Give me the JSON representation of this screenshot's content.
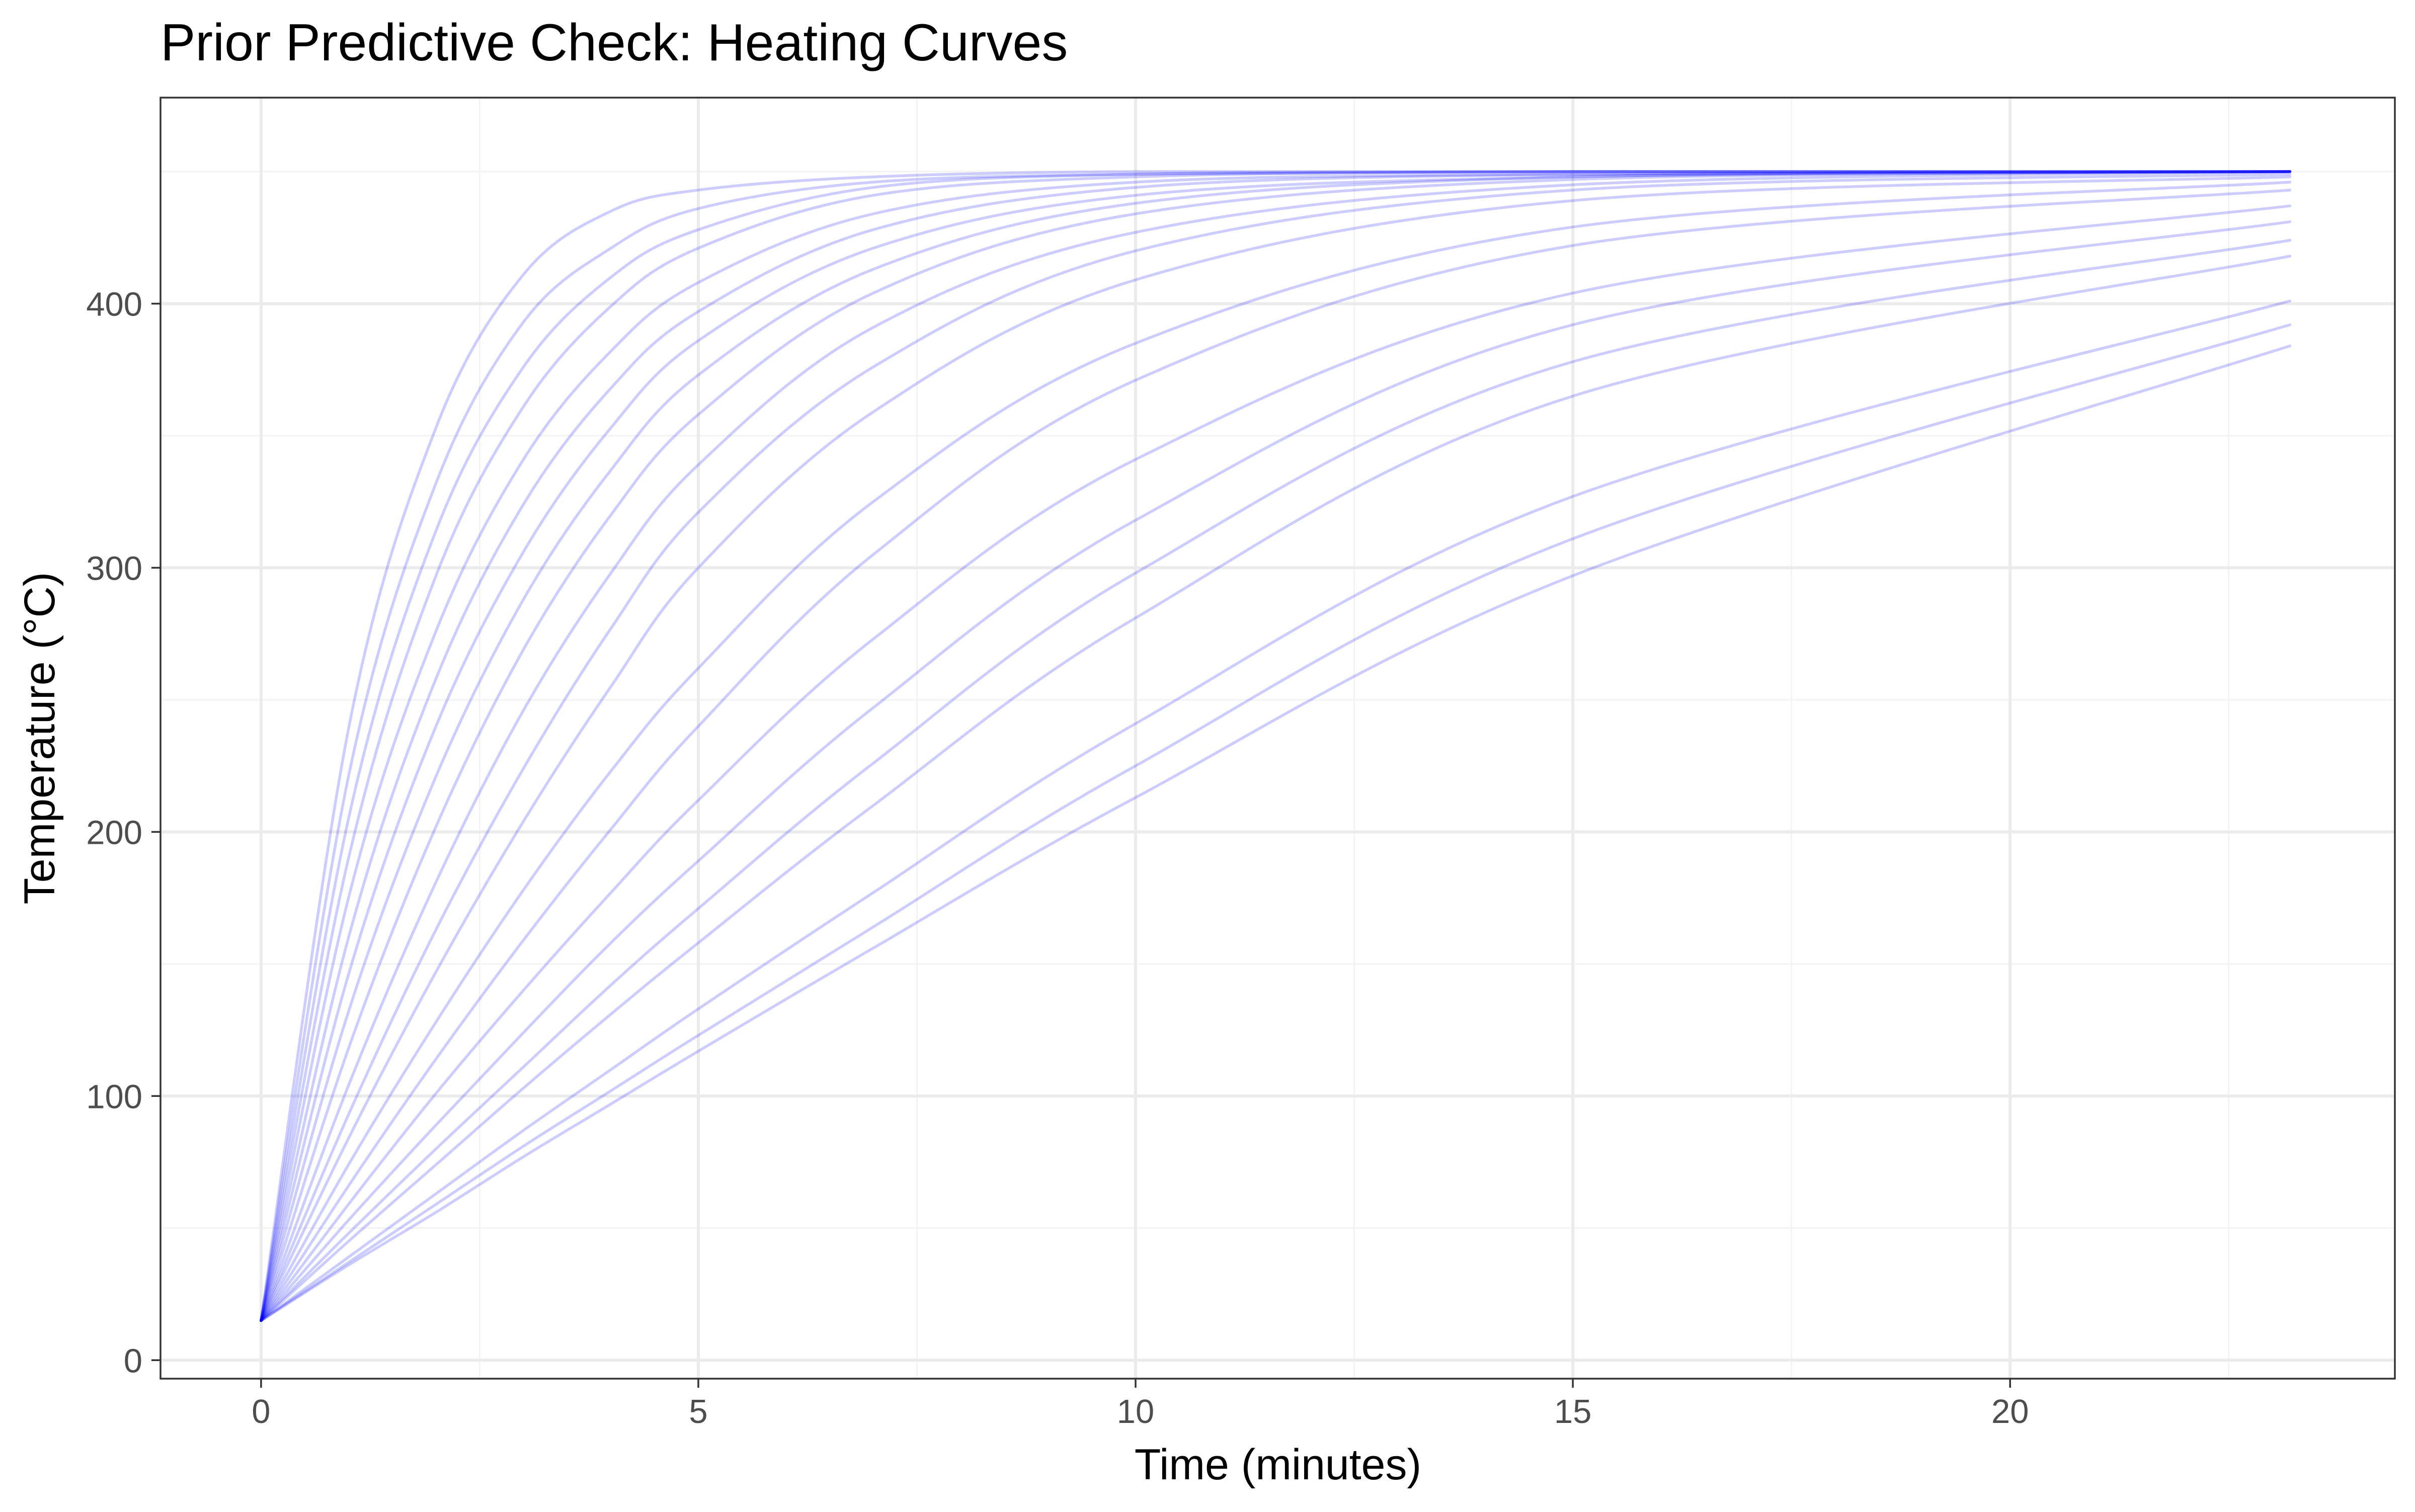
{
  "chart_data": {
    "type": "line",
    "title": "Prior Predictive Check: Heating Curves",
    "xlabel": "Time (minutes)",
    "ylabel": "Temperature (°C)",
    "xlim": [
      -1.15,
      24.4
    ],
    "ylim": [
      -7,
      478
    ],
    "x_ticks": [
      0,
      5,
      10,
      15,
      20
    ],
    "x_tick_labels": [
      "0",
      "5",
      "10",
      "15",
      "20"
    ],
    "y_ticks": [
      0,
      100,
      200,
      300,
      400
    ],
    "y_tick_labels": [
      "0",
      "100",
      "200",
      "300",
      "400"
    ],
    "grid": true,
    "legend": "none",
    "colors": {
      "line": "#0000ff",
      "grid_major": "#ebebeb",
      "grid_minor": "#f3f3f3",
      "panel_border": "#333333",
      "tick": "#333333"
    },
    "line_alpha": 0.2,
    "x_start": 0,
    "x_end": 23.2,
    "series": [
      {
        "values": [
          {
            "x": 0,
            "y": 15
          },
          {
            "x": 1,
            "y": 239
          },
          {
            "x": 2,
            "y": 353
          },
          {
            "x": 3,
            "y": 411
          },
          {
            "x": 4,
            "y": 435
          },
          {
            "x": 5,
            "y": 443
          },
          {
            "x": 7,
            "y": 448
          },
          {
            "x": 10,
            "y": 450
          },
          {
            "x": 15,
            "y": 450
          },
          {
            "x": 23.2,
            "y": 450
          }
        ]
      },
      {
        "values": [
          {
            "x": 0,
            "y": 15
          },
          {
            "x": 1,
            "y": 221
          },
          {
            "x": 2,
            "y": 332
          },
          {
            "x": 3,
            "y": 393
          },
          {
            "x": 4,
            "y": 421
          },
          {
            "x": 5,
            "y": 436
          },
          {
            "x": 7,
            "y": 446
          },
          {
            "x": 10,
            "y": 449
          },
          {
            "x": 15,
            "y": 450
          },
          {
            "x": 23.2,
            "y": 450
          }
        ]
      },
      {
        "values": [
          {
            "x": 0,
            "y": 15
          },
          {
            "x": 1,
            "y": 205
          },
          {
            "x": 2,
            "y": 314
          },
          {
            "x": 3,
            "y": 376
          },
          {
            "x": 4,
            "y": 410
          },
          {
            "x": 5,
            "y": 428
          },
          {
            "x": 7,
            "y": 444
          },
          {
            "x": 10,
            "y": 449
          },
          {
            "x": 15,
            "y": 450
          },
          {
            "x": 23.2,
            "y": 450
          }
        ]
      },
      {
        "values": [
          {
            "x": 0,
            "y": 15
          },
          {
            "x": 1,
            "y": 190
          },
          {
            "x": 2,
            "y": 297
          },
          {
            "x": 3,
            "y": 361
          },
          {
            "x": 4,
            "y": 399
          },
          {
            "x": 5,
            "y": 421
          },
          {
            "x": 7,
            "y": 441
          },
          {
            "x": 10,
            "y": 448
          },
          {
            "x": 15,
            "y": 450
          },
          {
            "x": 23.2,
            "y": 450
          }
        ]
      },
      {
        "values": [
          {
            "x": 0,
            "y": 15
          },
          {
            "x": 1,
            "y": 175
          },
          {
            "x": 2,
            "y": 276
          },
          {
            "x": 3,
            "y": 341
          },
          {
            "x": 4,
            "y": 382
          },
          {
            "x": 5,
            "y": 408
          },
          {
            "x": 7,
            "y": 434
          },
          {
            "x": 10,
            "y": 446
          },
          {
            "x": 15,
            "y": 449
          },
          {
            "x": 23.2,
            "y": 450
          }
        ]
      },
      {
        "values": [
          {
            "x": 0,
            "y": 15
          },
          {
            "x": 1,
            "y": 160
          },
          {
            "x": 2,
            "y": 258
          },
          {
            "x": 3,
            "y": 324
          },
          {
            "x": 4,
            "y": 368
          },
          {
            "x": 5,
            "y": 397
          },
          {
            "x": 7,
            "y": 428
          },
          {
            "x": 10,
            "y": 444
          },
          {
            "x": 15,
            "y": 449
          },
          {
            "x": 23.2,
            "y": 450
          }
        ]
      },
      {
        "values": [
          {
            "x": 0,
            "y": 15
          },
          {
            "x": 1,
            "y": 146
          },
          {
            "x": 2,
            "y": 240
          },
          {
            "x": 3,
            "y": 306
          },
          {
            "x": 4,
            "y": 353
          },
          {
            "x": 5,
            "y": 386
          },
          {
            "x": 7,
            "y": 421
          },
          {
            "x": 10,
            "y": 441
          },
          {
            "x": 15,
            "y": 448
          },
          {
            "x": 23.2,
            "y": 450
          }
        ]
      },
      {
        "values": [
          {
            "x": 0,
            "y": 15
          },
          {
            "x": 1,
            "y": 132
          },
          {
            "x": 2,
            "y": 221
          },
          {
            "x": 3,
            "y": 288
          },
          {
            "x": 4,
            "y": 337
          },
          {
            "x": 5,
            "y": 373
          },
          {
            "x": 7,
            "y": 413
          },
          {
            "x": 10,
            "y": 438
          },
          {
            "x": 15,
            "y": 448
          },
          {
            "x": 23.2,
            "y": 450
          }
        ]
      },
      {
        "values": [
          {
            "x": 0,
            "y": 15
          },
          {
            "x": 1,
            "y": 118
          },
          {
            "x": 2,
            "y": 202
          },
          {
            "x": 3,
            "y": 269
          },
          {
            "x": 4,
            "y": 320
          },
          {
            "x": 5,
            "y": 358
          },
          {
            "x": 7,
            "y": 404
          },
          {
            "x": 10,
            "y": 434
          },
          {
            "x": 15,
            "y": 447
          },
          {
            "x": 23.2,
            "y": 450
          }
        ]
      },
      {
        "values": [
          {
            "x": 0,
            "y": 15
          },
          {
            "x": 1,
            "y": 104
          },
          {
            "x": 2,
            "y": 181
          },
          {
            "x": 3,
            "y": 246
          },
          {
            "x": 4,
            "y": 298
          },
          {
            "x": 5,
            "y": 339
          },
          {
            "x": 7,
            "y": 391
          },
          {
            "x": 10,
            "y": 427
          },
          {
            "x": 15,
            "y": 445
          },
          {
            "x": 23.2,
            "y": 450
          }
        ]
      },
      {
        "values": [
          {
            "x": 0,
            "y": 15
          },
          {
            "x": 1,
            "y": 93
          },
          {
            "x": 2,
            "y": 163
          },
          {
            "x": 3,
            "y": 224
          },
          {
            "x": 4,
            "y": 277
          },
          {
            "x": 5,
            "y": 321
          },
          {
            "x": 7,
            "y": 376
          },
          {
            "x": 10,
            "y": 420
          },
          {
            "x": 15,
            "y": 443
          },
          {
            "x": 23.2,
            "y": 449
          }
        ]
      },
      {
        "values": [
          {
            "x": 0,
            "y": 15
          },
          {
            "x": 1,
            "y": 84
          },
          {
            "x": 2,
            "y": 147
          },
          {
            "x": 3,
            "y": 204
          },
          {
            "x": 4,
            "y": 255
          },
          {
            "x": 5,
            "y": 300
          },
          {
            "x": 7,
            "y": 359
          },
          {
            "x": 10,
            "y": 409
          },
          {
            "x": 15,
            "y": 439
          },
          {
            "x": 23.2,
            "y": 448
          }
        ]
      },
      {
        "values": [
          {
            "x": 0,
            "y": 15
          },
          {
            "x": 1,
            "y": 74
          },
          {
            "x": 2,
            "y": 128
          },
          {
            "x": 3,
            "y": 178
          },
          {
            "x": 4,
            "y": 223
          },
          {
            "x": 5,
            "y": 262
          },
          {
            "x": 7,
            "y": 325
          },
          {
            "x": 10,
            "y": 385
          },
          {
            "x": 15,
            "y": 429
          },
          {
            "x": 23.2,
            "y": 446
          }
        ]
      },
      {
        "values": [
          {
            "x": 0,
            "y": 15
          },
          {
            "x": 1,
            "y": 66
          },
          {
            "x": 2,
            "y": 114
          },
          {
            "x": 3,
            "y": 159
          },
          {
            "x": 4,
            "y": 201
          },
          {
            "x": 5,
            "y": 240
          },
          {
            "x": 7,
            "y": 305
          },
          {
            "x": 10,
            "y": 371
          },
          {
            "x": 15,
            "y": 422
          },
          {
            "x": 23.2,
            "y": 443
          }
        ]
      },
      {
        "values": [
          {
            "x": 0,
            "y": 15
          },
          {
            "x": 1,
            "y": 59
          },
          {
            "x": 2,
            "y": 101
          },
          {
            "x": 3,
            "y": 140
          },
          {
            "x": 4,
            "y": 177
          },
          {
            "x": 5,
            "y": 212
          },
          {
            "x": 7,
            "y": 273
          },
          {
            "x": 10,
            "y": 341
          },
          {
            "x": 15,
            "y": 404
          },
          {
            "x": 23.2,
            "y": 437
          }
        ]
      },
      {
        "values": [
          {
            "x": 0,
            "y": 15
          },
          {
            "x": 1,
            "y": 53
          },
          {
            "x": 2,
            "y": 89
          },
          {
            "x": 3,
            "y": 124
          },
          {
            "x": 4,
            "y": 158
          },
          {
            "x": 5,
            "y": 189
          },
          {
            "x": 7,
            "y": 247
          },
          {
            "x": 10,
            "y": 318
          },
          {
            "x": 15,
            "y": 392
          },
          {
            "x": 23.2,
            "y": 431
          }
        ]
      },
      {
        "values": [
          {
            "x": 0,
            "y": 15
          },
          {
            "x": 1,
            "y": 48
          },
          {
            "x": 2,
            "y": 80
          },
          {
            "x": 3,
            "y": 111
          },
          {
            "x": 4,
            "y": 142
          },
          {
            "x": 5,
            "y": 171
          },
          {
            "x": 7,
            "y": 226
          },
          {
            "x": 10,
            "y": 298
          },
          {
            "x": 15,
            "y": 378
          },
          {
            "x": 23.2,
            "y": 424
          }
        ]
      },
      {
        "values": [
          {
            "x": 0,
            "y": 15
          },
          {
            "x": 1,
            "y": 45
          },
          {
            "x": 2,
            "y": 74
          },
          {
            "x": 3,
            "y": 103
          },
          {
            "x": 4,
            "y": 131
          },
          {
            "x": 5,
            "y": 158
          },
          {
            "x": 7,
            "y": 210
          },
          {
            "x": 10,
            "y": 281
          },
          {
            "x": 15,
            "y": 365
          },
          {
            "x": 23.2,
            "y": 418
          }
        ]
      },
      {
        "values": [
          {
            "x": 0,
            "y": 15
          },
          {
            "x": 1,
            "y": 39
          },
          {
            "x": 2,
            "y": 63
          },
          {
            "x": 3,
            "y": 87
          },
          {
            "x": 4,
            "y": 110
          },
          {
            "x": 5,
            "y": 133
          },
          {
            "x": 7,
            "y": 177
          },
          {
            "x": 10,
            "y": 241
          },
          {
            "x": 15,
            "y": 327
          },
          {
            "x": 23.2,
            "y": 401
          }
        ]
      },
      {
        "values": [
          {
            "x": 0,
            "y": 15
          },
          {
            "x": 1,
            "y": 37
          },
          {
            "x": 2,
            "y": 59
          },
          {
            "x": 3,
            "y": 81
          },
          {
            "x": 4,
            "y": 102
          },
          {
            "x": 5,
            "y": 123
          },
          {
            "x": 7,
            "y": 164
          },
          {
            "x": 10,
            "y": 225
          },
          {
            "x": 15,
            "y": 311
          },
          {
            "x": 23.2,
            "y": 392
          }
        ]
      },
      {
        "values": [
          {
            "x": 0,
            "y": 15
          },
          {
            "x": 1,
            "y": 36
          },
          {
            "x": 2,
            "y": 56
          },
          {
            "x": 3,
            "y": 77
          },
          {
            "x": 4,
            "y": 97
          },
          {
            "x": 5,
            "y": 117
          },
          {
            "x": 7,
            "y": 156
          },
          {
            "x": 10,
            "y": 213
          },
          {
            "x": 15,
            "y": 297
          },
          {
            "x": 23.2,
            "y": 384
          }
        ]
      }
    ]
  }
}
